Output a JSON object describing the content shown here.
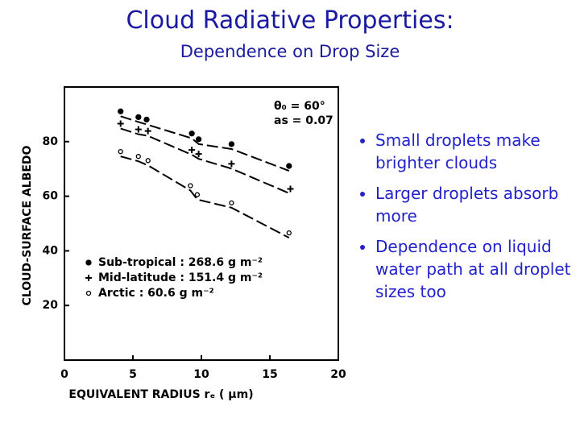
{
  "slide": {
    "title": "Cloud Radiative Properties:",
    "subtitle": "Dependence on Drop Size",
    "bullets": [
      "Small droplets make brighter clouds",
      "Larger droplets absorb more",
      "Dependence on liquid water path at all droplet sizes too"
    ]
  },
  "chart_data": {
    "type": "line",
    "line_style": "dashed",
    "xlabel": "EQUIVALENT RADIUS rₑ ( μm)",
    "ylabel": "CLOUD-SURFACE ALBEDO",
    "annotations": [
      "θ₀ = 60°",
      "as = 0.07"
    ],
    "xlim": [
      0,
      20
    ],
    "ylim": [
      0,
      100
    ],
    "xticks": [
      0,
      5,
      10,
      15,
      20
    ],
    "yticks": [
      20,
      40,
      60,
      80
    ],
    "series": [
      {
        "name": "Sub-tropical : 268.6 g m⁻²",
        "color": "#000000",
        "marker": "filled-circle",
        "x": [
          4.1,
          5.4,
          6.0,
          9.3,
          9.8,
          12.2,
          16.4
        ],
        "values": [
          89.3,
          87.2,
          86.3,
          81.2,
          79.1,
          77.3,
          69.3
        ]
      },
      {
        "name": "Mid-latitude : 151.4 g m⁻²",
        "color": "#000000",
        "marker": "plus",
        "x": [
          4.1,
          5.4,
          6.1,
          9.3,
          9.8,
          12.2,
          16.5
        ],
        "values": [
          84.8,
          82.7,
          82.1,
          75.2,
          73.7,
          70.1,
          60.9
        ]
      },
      {
        "name": "Arctic : 60.6 g m⁻²",
        "color": "#000000",
        "marker": "open-circle",
        "x": [
          4.1,
          5.4,
          6.1,
          9.2,
          9.7,
          12.2,
          16.4
        ],
        "values": [
          74.6,
          72.8,
          71.3,
          62.1,
          58.8,
          55.8,
          44.8
        ]
      }
    ]
  }
}
